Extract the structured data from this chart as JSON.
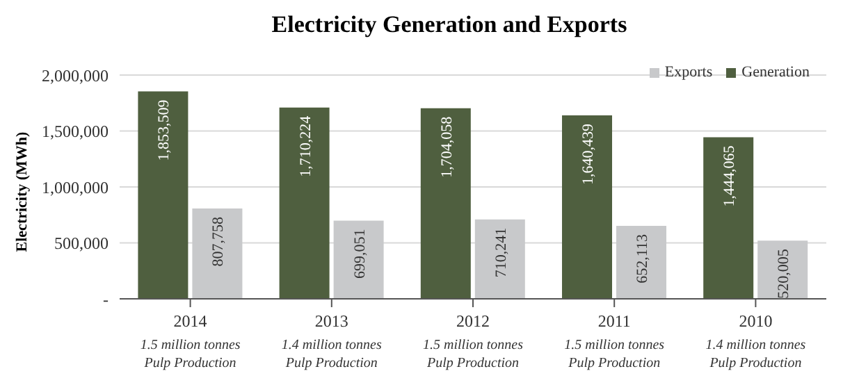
{
  "chart_data": {
    "type": "bar",
    "title": "Electricity Generation and Exports",
    "ylabel": "Electricity (MWh)",
    "categories": [
      "2014\n1.5 million tonnes\nPulp Production",
      "2013\n1.4 million tonnes\nPulp Production",
      "2012\n1.5 million tonnes\nPulp Production",
      "2011\n1.5 million tonnes\nPulp Production",
      "2010\n1.4 million tonnes\nPulp Production"
    ],
    "series": [
      {
        "name": "Generation",
        "color": "#4f5f3f",
        "values": [
          1853509,
          1710224,
          1704058,
          1640439,
          1444065
        ],
        "value_labels": [
          "1,853,509",
          "1,710,224",
          "1,704,058",
          "1,640,439",
          "1,444,065"
        ]
      },
      {
        "name": "Exports",
        "color": "#c8c9cb",
        "values": [
          807758,
          699051,
          710241,
          652113,
          520005
        ],
        "value_labels": [
          "807,758",
          "699,051",
          "710,241",
          "652,113",
          "520,005"
        ]
      }
    ],
    "ylim": [
      0,
      2000000
    ],
    "yticks": [
      {
        "value": 0,
        "label": "-"
      },
      {
        "value": 500000,
        "label": "500,000"
      },
      {
        "value": 1000000,
        "label": "1,000,000"
      },
      {
        "value": 1500000,
        "label": "1,500,000"
      },
      {
        "value": 2000000,
        "label": "2,000,000"
      }
    ],
    "grid": "y",
    "legend": "top right"
  }
}
